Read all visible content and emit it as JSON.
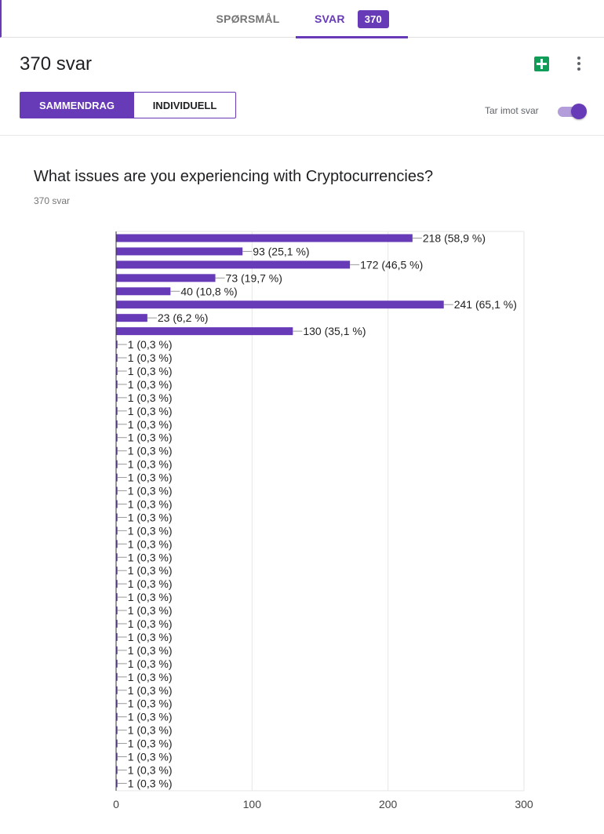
{
  "tabs": {
    "questions_label": "SPØRSMÅL",
    "responses_label": "SVAR",
    "responses_badge": "370"
  },
  "header": {
    "title": "370 svar",
    "sheets_icon": "sheets-icon",
    "more_icon": "more-vert-icon"
  },
  "view_toggle": {
    "summary_label": "SAMMENDRAG",
    "individual_label": "INDIVIDUELL",
    "selected": "SAMMENDRAG"
  },
  "accepting": {
    "label": "Tar imot svar",
    "enabled": true
  },
  "colors": {
    "accent": "#673ab7",
    "bar": "#673ab7",
    "sheets": "#0f9d58"
  },
  "question": {
    "title": "What issues are you experiencing with Cryptocurrencies?",
    "response_count": "370 svar"
  },
  "chart_data": {
    "type": "bar",
    "orientation": "horizontal",
    "values": [
      218,
      93,
      172,
      73,
      40,
      241,
      23,
      130,
      1,
      1,
      1,
      1,
      1,
      1,
      1,
      1,
      1,
      1,
      1,
      1,
      1,
      1,
      1,
      1,
      1,
      1,
      1,
      1,
      1,
      1,
      1,
      1,
      1,
      1,
      1,
      1,
      1,
      1,
      1,
      1,
      1,
      1
    ],
    "labels": [
      "218 (58,9 %)",
      "93 (25,1 %)",
      "172 (46,5 %)",
      "73 (19,7 %)",
      "40 (10,8 %)",
      "241 (65,1 %)",
      "23 (6,2 %)",
      "130 (35,1 %)",
      "1 (0,3 %)",
      "1 (0,3 %)",
      "1 (0,3 %)",
      "1 (0,3 %)",
      "1 (0,3 %)",
      "1 (0,3 %)",
      "1 (0,3 %)",
      "1 (0,3 %)",
      "1 (0,3 %)",
      "1 (0,3 %)",
      "1 (0,3 %)",
      "1 (0,3 %)",
      "1 (0,3 %)",
      "1 (0,3 %)",
      "1 (0,3 %)",
      "1 (0,3 %)",
      "1 (0,3 %)",
      "1 (0,3 %)",
      "1 (0,3 %)",
      "1 (0,3 %)",
      "1 (0,3 %)",
      "1 (0,3 %)",
      "1 (0,3 %)",
      "1 (0,3 %)",
      "1 (0,3 %)",
      "1 (0,3 %)",
      "1 (0,3 %)",
      "1 (0,3 %)",
      "1 (0,3 %)",
      "1 (0,3 %)",
      "1 (0,3 %)",
      "1 (0,3 %)",
      "1 (0,3 %)",
      "1 (0,3 %)"
    ],
    "xticks": [
      "0",
      "100",
      "200",
      "300"
    ],
    "xlim": [
      0,
      300
    ],
    "grid": true,
    "legend": "none"
  }
}
